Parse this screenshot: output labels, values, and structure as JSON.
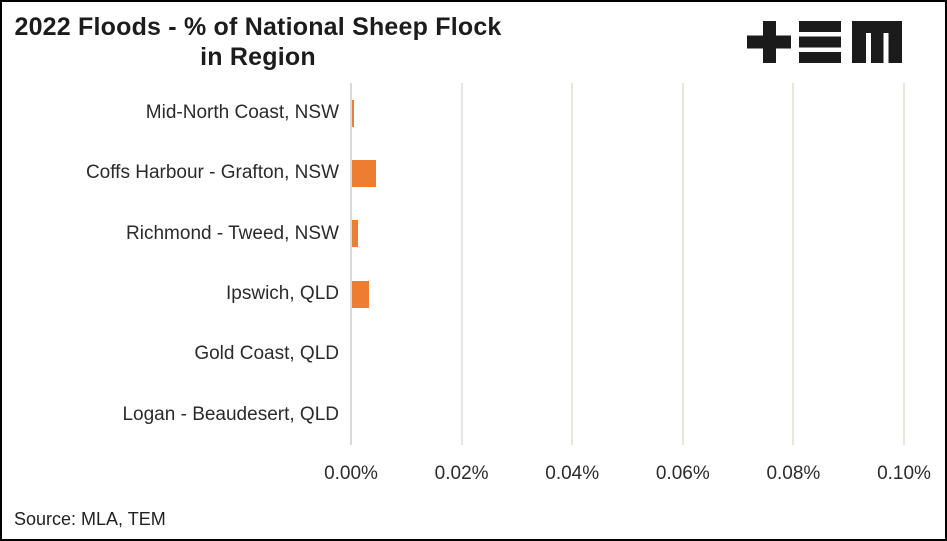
{
  "frame": {
    "background": "#FFFFFF",
    "border_color": "#000000"
  },
  "header": {
    "title_line1": "2022 Floods - % of National Sheep Flock",
    "title_line2": "in Region",
    "logo": {
      "name": "TEM",
      "color": "#1B1B1B",
      "glyphs": [
        "plus",
        "triple-bar",
        "blocky-m"
      ]
    }
  },
  "source_note": "Source: MLA, TEM",
  "chart_data": {
    "type": "bar",
    "orientation": "horizontal",
    "title": "2022 Floods - % of National Sheep Flock in Region",
    "categories": [
      "Mid-North Coast, NSW",
      "Coffs Harbour - Grafton, NSW",
      "Richmond - Tweed, NSW",
      "Ipswich, QLD",
      "Gold Coast, QLD",
      "Logan - Beaudesert, QLD"
    ],
    "values": [
      0.0004,
      0.0043,
      0.0011,
      0.0031,
      0,
      0
    ],
    "value_unit": "%",
    "xlabel": "",
    "ylabel": "",
    "xlim": [
      0,
      0.1
    ],
    "x_ticks": [
      "0.00%",
      "0.02%",
      "0.04%",
      "0.06%",
      "0.08%",
      "0.10%"
    ],
    "x_tick_values": [
      0,
      0.02,
      0.04,
      0.06,
      0.08,
      0.1
    ],
    "bar_color": "#ED7D31",
    "gridline_color": "#E8E5DD",
    "axis_line_color": "#D9D9D9",
    "legend": false,
    "gridlines": true
  }
}
